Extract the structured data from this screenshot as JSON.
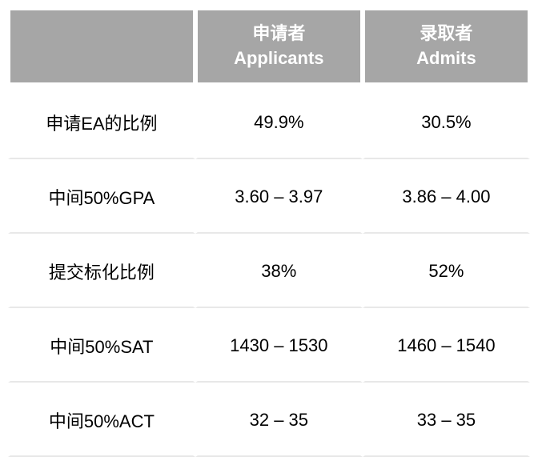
{
  "table": {
    "columns": [
      {
        "label_cn": "",
        "label_en": ""
      },
      {
        "label_cn": "申请者",
        "label_en": "Applicants"
      },
      {
        "label_cn": "录取者",
        "label_en": "Admits"
      }
    ],
    "rows": [
      {
        "label": "申请EA的比例",
        "applicants": "49.9%",
        "admits": "30.5%"
      },
      {
        "label": "中间50%GPA",
        "applicants": "3.60 – 3.97",
        "admits": "3.86 – 4.00"
      },
      {
        "label": "提交标化比例",
        "applicants": "38%",
        "admits": "52%"
      },
      {
        "label": "中间50%SAT",
        "applicants": "1430 – 1530",
        "admits": "1460 – 1540"
      },
      {
        "label": "中间50%ACT",
        "applicants": "32 – 35",
        "admits": "33 – 35"
      }
    ],
    "header_bg_color": "#a6a6a6",
    "header_text_color": "#ffffff",
    "cell_bg_color": "#ffffff",
    "cell_text_color": "#000000",
    "border_color": "#ffffff",
    "row_divider_color": "#e8e8e8",
    "font_size": 22
  }
}
